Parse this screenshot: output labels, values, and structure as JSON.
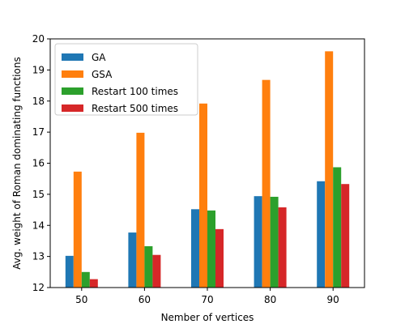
{
  "chart_data": {
    "type": "bar",
    "title": "",
    "xlabel": "Nember of vertices",
    "ylabel": "Avg. weight of Roman dominating functions",
    "categories": [
      "50",
      "60",
      "70",
      "80",
      "90"
    ],
    "ylim": [
      12,
      20
    ],
    "yticks": [
      12,
      13,
      14,
      15,
      16,
      17,
      18,
      19,
      20
    ],
    "grid": false,
    "legend_position": "top-left",
    "series": [
      {
        "name": "GA",
        "color": "#1f77b4",
        "values": [
          13.02,
          13.77,
          14.52,
          14.94,
          15.42
        ]
      },
      {
        "name": "GSA",
        "color": "#ff7f0e",
        "values": [
          15.73,
          16.98,
          17.92,
          18.68,
          19.6
        ]
      },
      {
        "name": "Restart 100 times",
        "color": "#2ca02c",
        "values": [
          12.5,
          13.33,
          14.48,
          14.92,
          15.87
        ]
      },
      {
        "name": "Restart 500 times",
        "color": "#d62728",
        "values": [
          12.27,
          13.05,
          13.88,
          14.58,
          15.33
        ]
      }
    ]
  }
}
